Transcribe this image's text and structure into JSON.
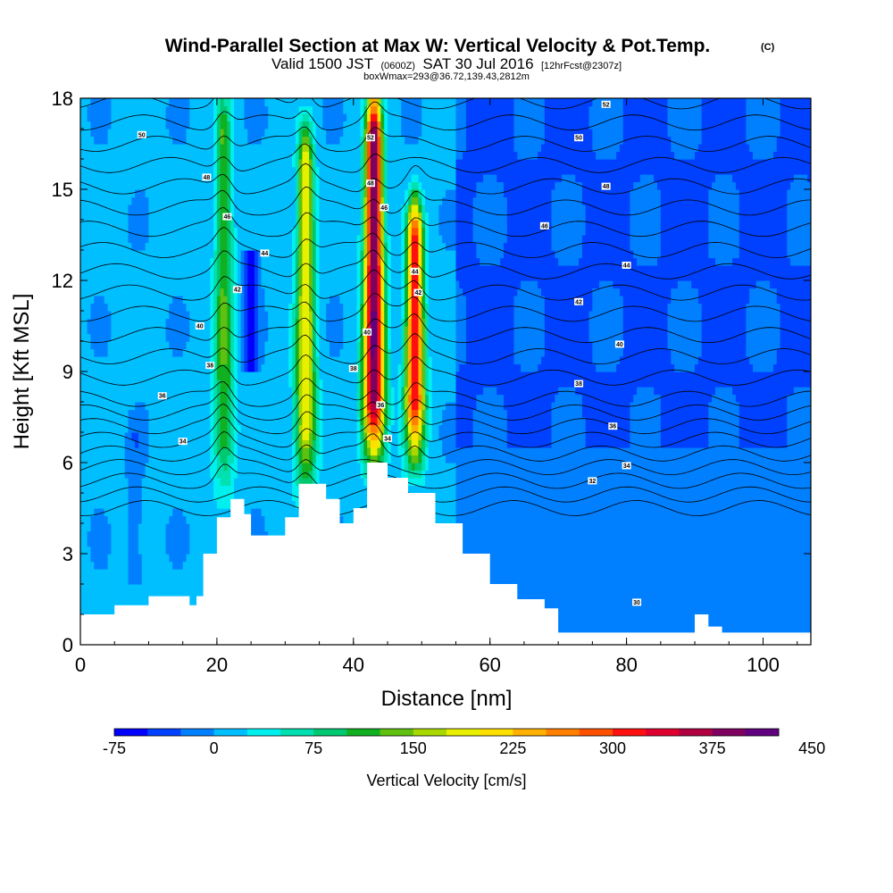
{
  "chart_data": {
    "type": "heatmap",
    "title": {
      "main": "Wind-Parallel Section at Max W: Vertical Velocity & Pot.Temp.",
      "copyright": "(C)",
      "line2_prefix": "Valid 1500 JST",
      "line2_zulu": "(0600Z)",
      "line2_date": "SAT 30 Jul 2016",
      "line2_run": "[12hrFcst@2307z]",
      "line3": "boxWmax=293@36.72,139.43,2812m"
    },
    "xlabel": "Distance [nm]",
    "ylabel": "Height [Kft MSL]",
    "xlim": [
      0,
      107
    ],
    "ylim": [
      0,
      18
    ],
    "xticks": [
      "0",
      "20",
      "40",
      "60",
      "80",
      "100"
    ],
    "yticks": [
      "0",
      "3",
      "6",
      "9",
      "12",
      "15",
      "18"
    ],
    "colorbar": {
      "label": "Vertical Velocity [cm/s]",
      "levels_start": -75,
      "levels_step": 25,
      "tick_labels": [
        "-75",
        "0",
        "75",
        "150",
        "225",
        "300",
        "375",
        "450"
      ],
      "colors": [
        "#0000ff",
        "#0040ff",
        "#0080ff",
        "#00bfff",
        "#00f0f0",
        "#00e0b0",
        "#00c870",
        "#10b020",
        "#60c010",
        "#a8d800",
        "#e8f000",
        "#ffe000",
        "#ffb000",
        "#ff8000",
        "#ff5000",
        "#ff1010",
        "#e00030",
        "#b00040",
        "#800060",
        "#600080"
      ]
    },
    "background_level": "0 to 25 cm/s",
    "updrafts": [
      {
        "x": 21,
        "ytop": 18,
        "ybot": 5,
        "peak": 120
      },
      {
        "x": 33,
        "ytop": 17,
        "ybot": 5,
        "peak": 190
      },
      {
        "x": 43,
        "ytop": 18,
        "ybot": 6,
        "peak": 400
      },
      {
        "x": 49,
        "ytop": 14.5,
        "ybot": 6,
        "peak": 320
      }
    ],
    "downdrafts": [
      {
        "x": 25,
        "ytop": 13,
        "ybot": 9,
        "peak": -70
      },
      {
        "x": 8,
        "ytop": 7,
        "ybot": 2,
        "peak": -25
      }
    ],
    "terrain_profile": [
      [
        0,
        1
      ],
      [
        5,
        1
      ],
      [
        5,
        1.3
      ],
      [
        10,
        1.3
      ],
      [
        10,
        1.6
      ],
      [
        16,
        1.6
      ],
      [
        16,
        1.3
      ],
      [
        17,
        1.3
      ],
      [
        17,
        1.6
      ],
      [
        18,
        1.6
      ],
      [
        18,
        3
      ],
      [
        20,
        3
      ],
      [
        20,
        4.2
      ],
      [
        22,
        4.2
      ],
      [
        22,
        4.8
      ],
      [
        24,
        4.8
      ],
      [
        24,
        4.3
      ],
      [
        25,
        4.3
      ],
      [
        25,
        3.6
      ],
      [
        30,
        3.6
      ],
      [
        30,
        4.2
      ],
      [
        32,
        4.2
      ],
      [
        32,
        5.3
      ],
      [
        36,
        5.3
      ],
      [
        36,
        4.8
      ],
      [
        38,
        4.8
      ],
      [
        38,
        4
      ],
      [
        40,
        4
      ],
      [
        40,
        4.5
      ],
      [
        42,
        4.5
      ],
      [
        42,
        6
      ],
      [
        45,
        6
      ],
      [
        45,
        5.5
      ],
      [
        48,
        5.5
      ],
      [
        48,
        5
      ],
      [
        52,
        5
      ],
      [
        52,
        4
      ],
      [
        56,
        4
      ],
      [
        56,
        3
      ],
      [
        60,
        3
      ],
      [
        60,
        2
      ],
      [
        64,
        2
      ],
      [
        64,
        1.5
      ],
      [
        68,
        1.5
      ],
      [
        68,
        1.2
      ],
      [
        70,
        1.2
      ],
      [
        70,
        0.4
      ],
      [
        90,
        0.4
      ],
      [
        90,
        1
      ],
      [
        92,
        1
      ],
      [
        92,
        0.6
      ],
      [
        94,
        0.6
      ],
      [
        94,
        0.4
      ],
      [
        107,
        0.4
      ]
    ],
    "theta_contour_labels": [
      {
        "text": "50",
        "x": 9,
        "y": 16.8
      },
      {
        "text": "48",
        "x": 18.5,
        "y": 15.4
      },
      {
        "text": "46",
        "x": 21.5,
        "y": 14.1
      },
      {
        "text": "44",
        "x": 27,
        "y": 12.9
      },
      {
        "text": "42",
        "x": 23,
        "y": 11.7
      },
      {
        "text": "40",
        "x": 17.5,
        "y": 10.5
      },
      {
        "text": "38",
        "x": 19,
        "y": 9.2
      },
      {
        "text": "36",
        "x": 12,
        "y": 8.2
      },
      {
        "text": "34",
        "x": 15,
        "y": 6.7
      },
      {
        "text": "52",
        "x": 42.5,
        "y": 16.7
      },
      {
        "text": "48",
        "x": 42.5,
        "y": 15.2
      },
      {
        "text": "46",
        "x": 44.5,
        "y": 14.4
      },
      {
        "text": "44",
        "x": 49,
        "y": 12.3
      },
      {
        "text": "42",
        "x": 49.5,
        "y": 11.6
      },
      {
        "text": "40",
        "x": 42,
        "y": 10.3
      },
      {
        "text": "38",
        "x": 40,
        "y": 9.1
      },
      {
        "text": "36",
        "x": 44,
        "y": 7.9
      },
      {
        "text": "34",
        "x": 45,
        "y": 6.8
      },
      {
        "text": "52",
        "x": 77,
        "y": 17.8
      },
      {
        "text": "50",
        "x": 73,
        "y": 16.7
      },
      {
        "text": "48",
        "x": 77,
        "y": 15.1
      },
      {
        "text": "46",
        "x": 68,
        "y": 13.8
      },
      {
        "text": "44",
        "x": 80,
        "y": 12.5
      },
      {
        "text": "42",
        "x": 73,
        "y": 11.3
      },
      {
        "text": "40",
        "x": 79,
        "y": 9.9
      },
      {
        "text": "38",
        "x": 73,
        "y": 8.6
      },
      {
        "text": "36",
        "x": 78,
        "y": 7.2
      },
      {
        "text": "34",
        "x": 80,
        "y": 5.9
      },
      {
        "text": "32",
        "x": 75,
        "y": 5.4
      },
      {
        "text": "30",
        "x": 81.5,
        "y": 1.4
      }
    ]
  }
}
